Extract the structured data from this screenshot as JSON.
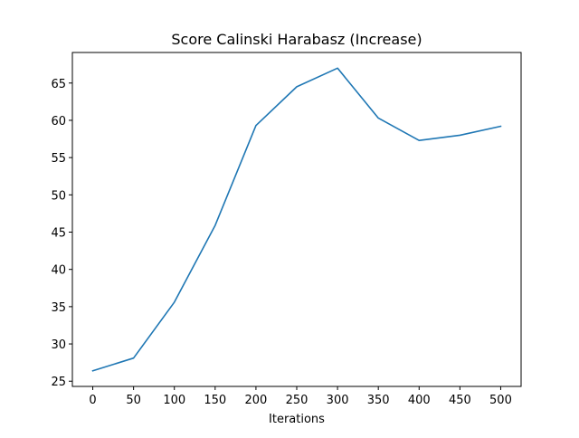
{
  "chart_data": {
    "type": "line",
    "title": "Score Calinski Harabasz (Increase)",
    "xlabel": "Iterations",
    "ylabel": "",
    "x": [
      0,
      50,
      100,
      150,
      200,
      250,
      300,
      350,
      400,
      450,
      500
    ],
    "series": [
      {
        "values": [
          26.4,
          28.1,
          35.6,
          45.9,
          59.3,
          64.5,
          67.0,
          60.3,
          57.3,
          58.0,
          59.2
        ],
        "color": "#1f77b4"
      }
    ],
    "xticks": [
      0,
      50,
      100,
      150,
      200,
      250,
      300,
      350,
      400,
      450,
      500
    ],
    "yticks": [
      25,
      30,
      35,
      40,
      45,
      50,
      55,
      60,
      65
    ],
    "xlim": [
      -25,
      525
    ],
    "ylim": [
      24.3,
      69.1
    ],
    "grid": false,
    "legend": "none"
  }
}
